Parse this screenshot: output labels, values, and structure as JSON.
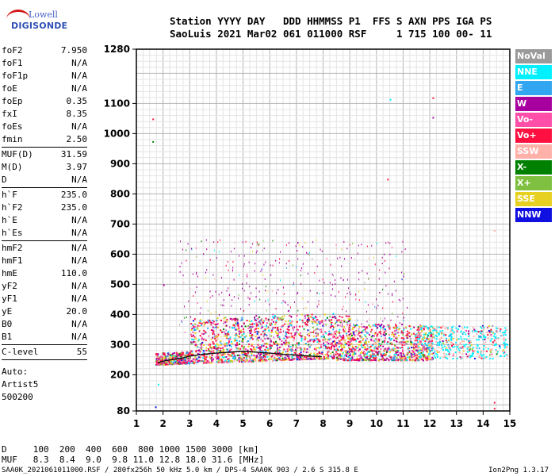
{
  "logo": {
    "line1": "Lowell",
    "line2": "DIGISONDE"
  },
  "header": {
    "line1": "Station YYYY DAY   DDD HHMMSS P1  FFS S AXN PPS IGA PS",
    "line2": "SaoLuis 2021 Mar02 061 011000 RSF     1 715 100 00- 11"
  },
  "params": [
    {
      "name": "foF2",
      "value": "7.950"
    },
    {
      "name": "foF1",
      "value": "N/A"
    },
    {
      "name": "foF1p",
      "value": "N/A"
    },
    {
      "name": "foE",
      "value": "N/A"
    },
    {
      "name": "foEp",
      "value": "0.35"
    },
    {
      "name": "fxI",
      "value": "8.35"
    },
    {
      "name": "foEs",
      "value": "N/A"
    },
    {
      "name": "fmin",
      "value": "2.50"
    },
    {
      "sep": true
    },
    {
      "name": "MUF(D)",
      "value": "31.59"
    },
    {
      "name": "M(D)",
      "value": "3.97"
    },
    {
      "name": "D",
      "value": "N/A"
    },
    {
      "sep": true
    },
    {
      "name": "h`F",
      "value": "235.0"
    },
    {
      "name": "h`F2",
      "value": "235.0"
    },
    {
      "name": "h`E",
      "value": "N/A"
    },
    {
      "name": "h`Es",
      "value": "N/A"
    },
    {
      "sep": true
    },
    {
      "name": "hmF2",
      "value": "N/A"
    },
    {
      "name": "hmF1",
      "value": "N/A"
    },
    {
      "name": "hmE",
      "value": "110.0"
    },
    {
      "name": "yF2",
      "value": "N/A"
    },
    {
      "name": "yF1",
      "value": "N/A"
    },
    {
      "name": "yE",
      "value": "20.0"
    },
    {
      "name": "B0",
      "value": "N/A"
    },
    {
      "name": "B1",
      "value": "N/A"
    },
    {
      "sep": true
    },
    {
      "name": "C-level",
      "value": "55"
    },
    {
      "sep": true
    }
  ],
  "autoscaling": {
    "label": "Auto:",
    "artist": "Artist5",
    "code": "500200"
  },
  "legend": [
    {
      "label": "NoVal",
      "color": "#9a9a9a"
    },
    {
      "label": "NNE",
      "color": "#00f0ff"
    },
    {
      "label": "E",
      "color": "#33a6f2"
    },
    {
      "label": "W",
      "color": "#a8009e"
    },
    {
      "label": "Vo-",
      "color": "#ff4fa8"
    },
    {
      "label": "Vo+",
      "color": "#ff1040"
    },
    {
      "label": "SSW",
      "color": "#ffb0a8"
    },
    {
      "label": "X-",
      "color": "#008000"
    },
    {
      "label": "X+",
      "color": "#7fc040"
    },
    {
      "label": "SSE",
      "color": "#e8d020"
    },
    {
      "label": "NNW",
      "color": "#1010e0"
    }
  ],
  "chart_data": {
    "type": "scatter",
    "title": "",
    "xlabel": "",
    "ylabel": "",
    "xlim": [
      1,
      15
    ],
    "ylim": [
      80,
      1280
    ],
    "x_ticks": [
      1,
      2,
      3,
      4,
      5,
      6,
      7,
      8,
      9,
      10,
      11,
      12,
      13,
      14,
      15
    ],
    "y_ticks": [
      80,
      200,
      300,
      400,
      500,
      600,
      700,
      800,
      900,
      1000,
      1100,
      1280
    ],
    "grid": true,
    "trace": {
      "name": "",
      "x": [
        1.8,
        2.0,
        2.3,
        2.7,
        3.0,
        3.5,
        4.0,
        4.5,
        5.0,
        5.5,
        6.0,
        6.5,
        7.0,
        7.5,
        7.95
      ],
      "y": [
        240,
        245,
        250,
        255,
        262,
        268,
        272,
        275,
        278,
        275,
        272,
        268,
        265,
        262,
        260
      ]
    }
  },
  "bottom": {
    "d_line": "D     100  200  400  600  800 1000 1500 3000 [km]",
    "muf_line": "MUF   8.3  8.4  9.0  9.8 11.0 12.8 18.0 31.6 [MHz]"
  },
  "footer": {
    "left": "SAA0K_2021061011000.RSF / 280fx256h 50 kHz 5.0 km / DPS-4 SAA0K 903 / 2.6 S 315.8 E",
    "right": "Ion2Png 1.3.17"
  }
}
